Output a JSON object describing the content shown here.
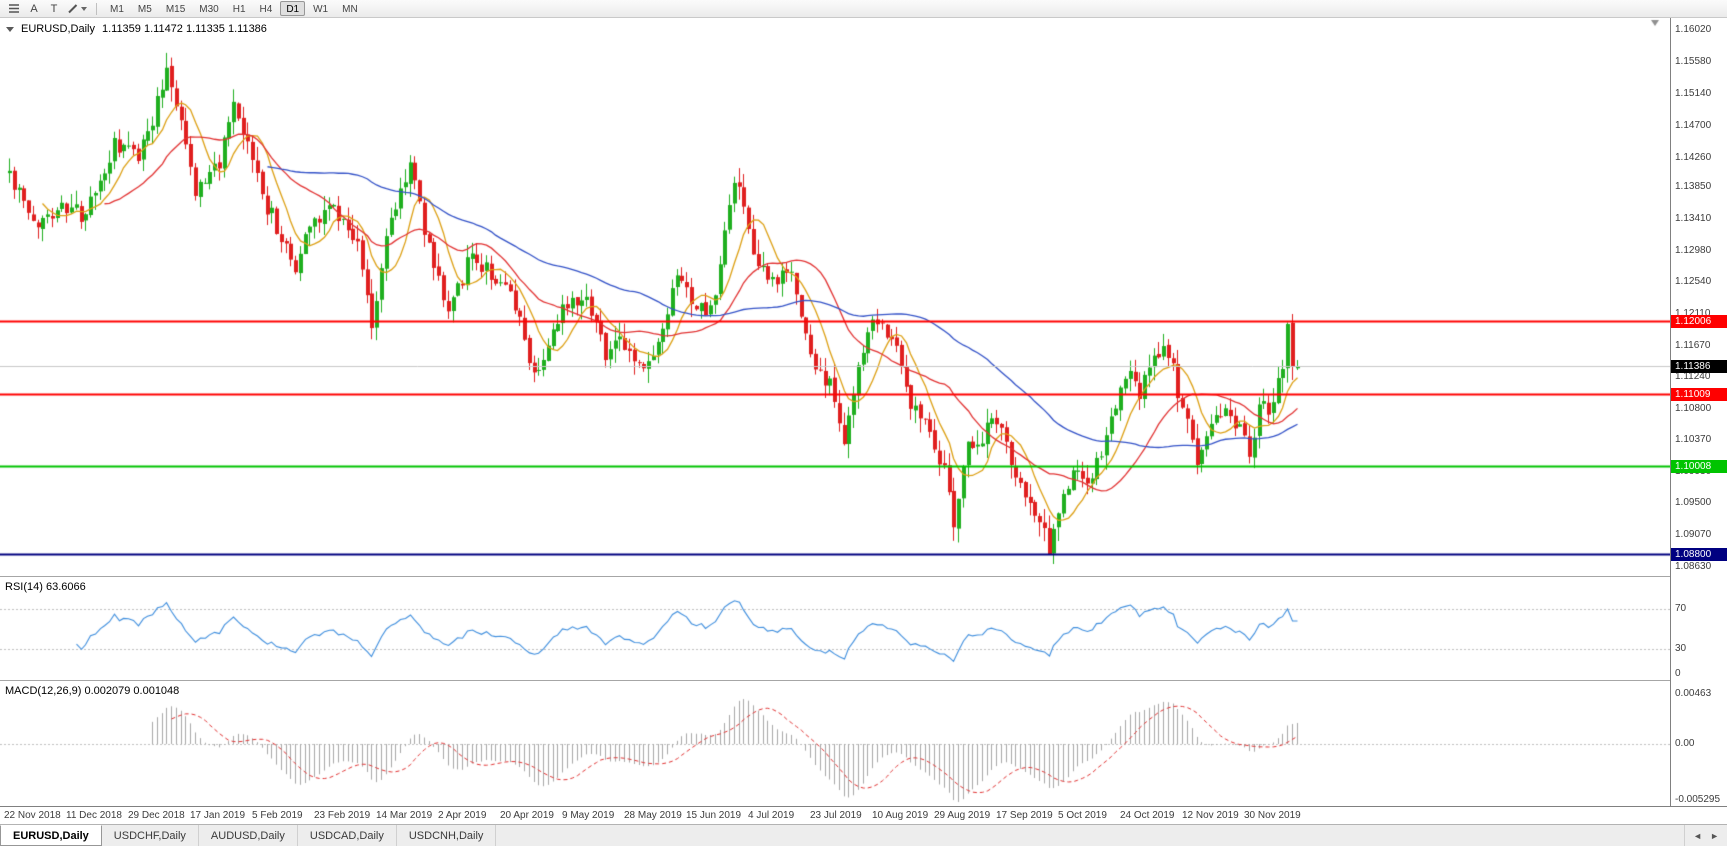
{
  "toolbar": {
    "tools": [
      {
        "name": "indicators",
        "glyph": "bars"
      },
      {
        "name": "cursor-tool",
        "glyph": "A"
      },
      {
        "name": "text-tool",
        "glyph": "T"
      },
      {
        "name": "drawing-tool",
        "glyph": "pencil",
        "caret": true
      }
    ],
    "timeframes": [
      "M1",
      "M5",
      "M15",
      "M30",
      "H1",
      "H4",
      "D1",
      "W1",
      "MN"
    ],
    "active_timeframe": "D1"
  },
  "chart": {
    "title": "EURUSD,Daily",
    "ohlc_text": "1.11359 1.11472 1.11335 1.11386"
  },
  "chart_data": {
    "type": "candlestick",
    "symbol": "EURUSD",
    "timeframe": "Daily",
    "current_bar": {
      "open": 1.11359,
      "high": 1.11472,
      "low": 1.11335,
      "close": 1.11386
    },
    "price_axis_labels": [
      "1.16020",
      "1.15580",
      "1.15140",
      "1.14700",
      "1.14260",
      "1.13850",
      "1.13410",
      "1.12980",
      "1.12540",
      "1.12110",
      "1.11670",
      "1.11240",
      "1.10800",
      "1.10370",
      "1.09930",
      "1.09500",
      "1.09070",
      "1.08630"
    ],
    "price_axis_range": [
      1.085,
      1.1618
    ],
    "date_labels": [
      "22 Nov 2018",
      "11 Dec 2018",
      "29 Dec 2018",
      "17 Jan 2019",
      "5 Feb 2019",
      "23 Feb 2019",
      "14 Mar 2019",
      "2 Apr 2019",
      "20 Apr 2019",
      "9 May 2019",
      "28 May 2019",
      "15 Jun 2019",
      "4 Jul 2019",
      "23 Jul 2019",
      "10 Aug 2019",
      "29 Aug 2019",
      "17 Sep 2019",
      "5 Oct 2019",
      "24 Oct 2019",
      "12 Nov 2019",
      "30 Nov 2019"
    ],
    "horizontal_lines": [
      {
        "price": 1.12006,
        "label": "1.12006",
        "color": "#FF0000",
        "width": 2
      },
      {
        "price": 1.11009,
        "label": "1.11009",
        "color": "#FF0000",
        "width": 2
      },
      {
        "price": 1.10008,
        "label": "1.10008",
        "color": "#00C400",
        "width": 2
      },
      {
        "price": 1.088,
        "label": "1.08800",
        "color": "#000080",
        "width": 2
      }
    ],
    "current_price": {
      "value": 1.11386,
      "label": "1.11386",
      "line_color": "#C8C8C8",
      "badge_bg": "#000000"
    },
    "candles": {
      "count": 271,
      "up_color": "#1FAF1F",
      "down_color": "#E01F1F",
      "anchors": [
        [
          0,
          1.1405
        ],
        [
          5,
          1.133
        ],
        [
          10,
          1.136
        ],
        [
          16,
          1.1345
        ],
        [
          22,
          1.144
        ],
        [
          27,
          1.143
        ],
        [
          31,
          1.15
        ],
        [
          33,
          1.1555
        ],
        [
          36,
          1.148
        ],
        [
          39,
          1.138
        ],
        [
          44,
          1.142
        ],
        [
          47,
          1.149
        ],
        [
          50,
          1.144
        ],
        [
          54,
          1.136
        ],
        [
          60,
          1.127
        ],
        [
          63,
          1.134
        ],
        [
          68,
          1.136
        ],
        [
          73,
          1.131
        ],
        [
          76,
          1.119
        ],
        [
          79,
          1.132
        ],
        [
          84,
          1.142
        ],
        [
          88,
          1.13
        ],
        [
          92,
          1.122
        ],
        [
          97,
          1.129
        ],
        [
          102,
          1.126
        ],
        [
          106,
          1.122
        ],
        [
          110,
          1.113
        ],
        [
          114,
          1.118
        ],
        [
          117,
          1.123
        ],
        [
          121,
          1.124
        ],
        [
          125,
          1.116
        ],
        [
          129,
          1.117
        ],
        [
          133,
          1.113
        ],
        [
          137,
          1.118
        ],
        [
          140,
          1.126
        ],
        [
          144,
          1.121
        ],
        [
          148,
          1.123
        ],
        [
          151,
          1.137
        ],
        [
          153,
          1.139
        ],
        [
          156,
          1.128
        ],
        [
          160,
          1.125
        ],
        [
          164,
          1.127
        ],
        [
          168,
          1.115
        ],
        [
          172,
          1.111
        ],
        [
          175,
          1.104
        ],
        [
          177,
          1.11
        ],
        [
          180,
          1.119
        ],
        [
          183,
          1.12
        ],
        [
          186,
          1.117
        ],
        [
          189,
          1.109
        ],
        [
          193,
          1.106
        ],
        [
          196,
          1.099
        ],
        [
          198,
          1.093
        ],
        [
          201,
          1.103
        ],
        [
          204,
          1.104
        ],
        [
          207,
          1.107
        ],
        [
          210,
          1.101
        ],
        [
          213,
          1.096
        ],
        [
          216,
          1.092
        ],
        [
          218,
          1.089
        ],
        [
          220,
          1.094
        ],
        [
          223,
          1.099
        ],
        [
          227,
          1.098
        ],
        [
          231,
          1.106
        ],
        [
          234,
          1.113
        ],
        [
          237,
          1.11
        ],
        [
          240,
          1.115
        ],
        [
          243,
          1.116
        ],
        [
          246,
          1.108
        ],
        [
          249,
          1.101
        ],
        [
          252,
          1.106
        ],
        [
          255,
          1.108
        ],
        [
          258,
          1.105
        ],
        [
          260,
          1.102
        ],
        [
          262,
          1.108
        ],
        [
          264,
          1.108
        ],
        [
          266,
          1.111
        ],
        [
          267,
          1.114
        ],
        [
          268,
          1.119
        ],
        [
          269,
          1.113
        ],
        [
          270,
          1.11386
        ]
      ],
      "key_bars": [
        {
          "index": 33,
          "high": 1.157
        },
        {
          "index": 218,
          "low": 1.088
        },
        {
          "index": 268,
          "high": 1.1199
        },
        {
          "index": 270,
          "open": 1.11359,
          "high": 1.11472,
          "low": 1.11335,
          "close": 1.11386
        }
      ]
    },
    "moving_averages": [
      {
        "period": 8,
        "color": "#DDA014"
      },
      {
        "period": 21,
        "color": "#E23232"
      },
      {
        "period": 55,
        "color": "#3352C8"
      }
    ],
    "rsi": {
      "label": "RSI(14) 63.6066",
      "period": 14,
      "value": 63.6066,
      "levels": [
        70,
        30
      ],
      "axis_labels": [
        "70",
        "30",
        "0"
      ],
      "line_color": "#3E8EDE"
    },
    "macd": {
      "label": "MACD(12,26,9) 0.002079 0.001048",
      "fast": 12,
      "slow": 26,
      "signal": 9,
      "values": [
        0.002079,
        0.001048
      ],
      "axis_labels": [
        "0.00463",
        "0.00",
        "-0.005295"
      ],
      "axis_values": [
        0.00463,
        0,
        -0.005295
      ],
      "histogram_color": "#A8A8A8",
      "signal_color": "#E23232"
    }
  },
  "tabs": {
    "items": [
      "EURUSD,Daily",
      "USDCHF,Daily",
      "AUDUSD,Daily",
      "USDCAD,Daily",
      "USDCNH,Daily"
    ],
    "active_index": 0,
    "scroll_left": "◄",
    "scroll_right": "►"
  }
}
